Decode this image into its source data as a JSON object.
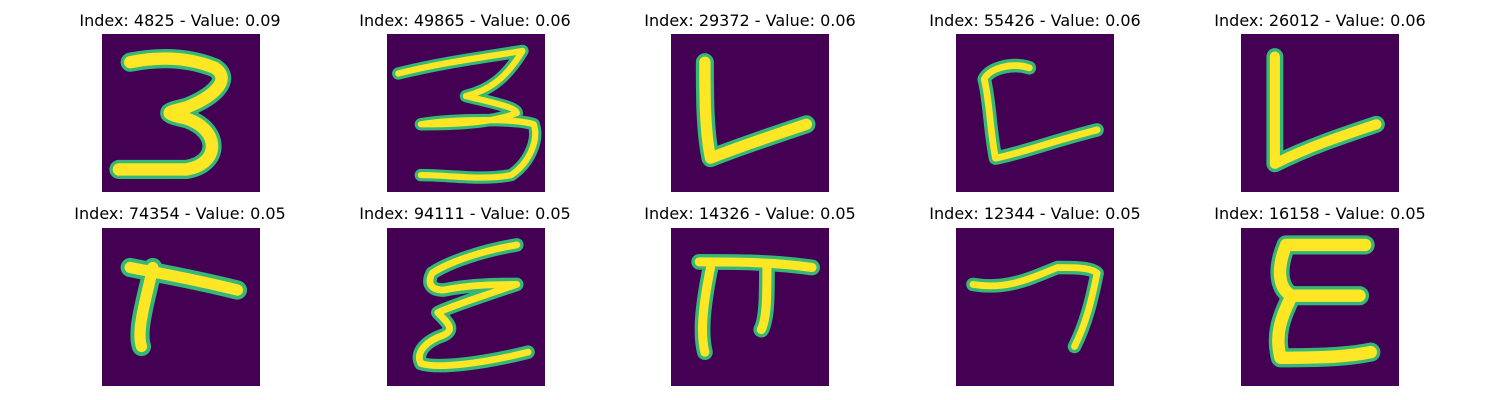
{
  "figure": {
    "background": "#440154",
    "stroke_core": "#fde725",
    "stroke_edge": "#35b779"
  },
  "panels": [
    {
      "title": "Index: 4825 - Value: 0.09",
      "glyph": "3"
    },
    {
      "title": "Index: 49865 - Value: 0.06",
      "glyph": "3"
    },
    {
      "title": "Index: 29372 - Value: 0.06",
      "glyph": "L"
    },
    {
      "title": "Index: 55426 - Value: 0.06",
      "glyph": "L"
    },
    {
      "title": "Index: 26012 - Value: 0.06",
      "glyph": "L"
    },
    {
      "title": "Index: 74354 - Value: 0.05",
      "glyph": "L"
    },
    {
      "title": "Index: 94111 - Value: 0.05",
      "glyph": "E"
    },
    {
      "title": "Index: 14326 - Value: 0.05",
      "glyph": "pi"
    },
    {
      "title": "Index: 12344 - Value: 0.05",
      "glyph": "7"
    },
    {
      "title": "Index: 16158 - Value: 0.05",
      "glyph": "E"
    }
  ]
}
